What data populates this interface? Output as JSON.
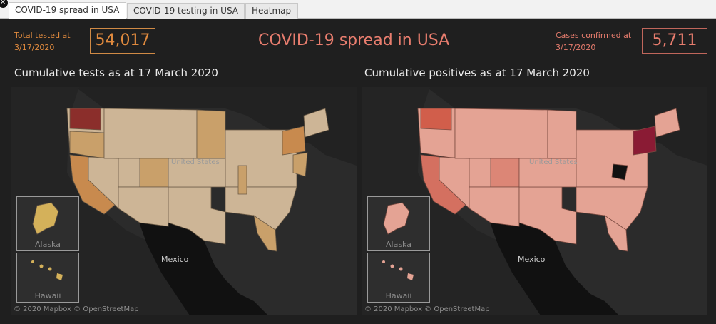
{
  "tabs": [
    "COVID-19 spread in USA",
    "COVID-19 testing in USA",
    "Heatmap"
  ],
  "close_glyph": "✕",
  "header": {
    "title": "COVID-19 spread in USA",
    "tested_label_1": "Total tested at",
    "tested_label_2": "3/17/2020",
    "tested_value": "54,017",
    "confirmed_label_1": "Cases confirmed at",
    "confirmed_label_2": "3/17/2020",
    "confirmed_value": "5,711"
  },
  "maps": {
    "left": {
      "title": "Cumulative tests as at 17 March 2020",
      "inset_alaska": "Alaska",
      "inset_hawaii": "Hawaii",
      "label_us": "United States",
      "label_mexico": "Mexico",
      "copyright": "© 2020 Mapbox © OpenStreetMap"
    },
    "right": {
      "title": "Cumulative positives as at 17 March 2020",
      "inset_alaska": "Alaska",
      "inset_hawaii": "Hawaii",
      "label_us": "United States",
      "label_mexico": "Mexico",
      "copyright": "© 2020 Mapbox © OpenStreetMap"
    }
  },
  "colors": {
    "accent_orange": "#e08a3e",
    "title_red": "#e87d6e",
    "tests_base": "#cdb596",
    "tests_mid": "#c9a06a",
    "tests_high": "#c88a4e",
    "tests_top": "#8b2e2b",
    "pos_base": "#e4a394",
    "pos_mid": "#dc8676",
    "pos_high": "#d15e4b",
    "pos_top": "#8a1b34"
  }
}
